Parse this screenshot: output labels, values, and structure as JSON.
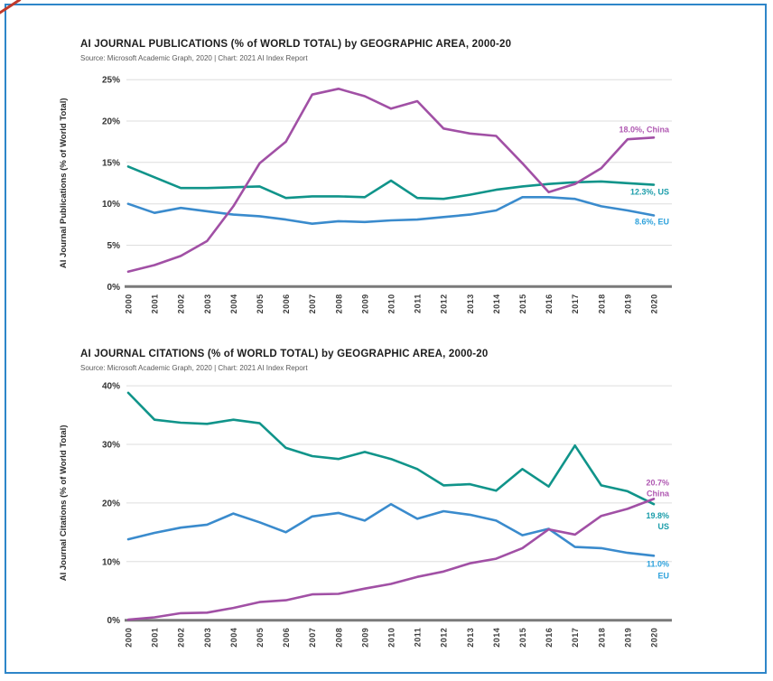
{
  "page": {
    "frame_color": "#2e86c9",
    "corner_mark_color": "#c0392b",
    "background": "#ffffff"
  },
  "chart_data": [
    {
      "type": "line",
      "title": "AI JOURNAL PUBLICATIONS (% of WORLD TOTAL) by GEOGRAPHIC AREA, 2000-20",
      "source": "Source: Microsoft Academic Graph, 2020 | Chart: 2021 AI Index Report",
      "ylabel": "AI Journal Publications (% of World Total)",
      "ylim": [
        0,
        25
      ],
      "ytick_labels": [
        "0%",
        "5%",
        "10%",
        "15%",
        "20%",
        "25%"
      ],
      "grid": true,
      "legend_position": "end-of-line labels (right)",
      "x": [
        2000,
        2001,
        2002,
        2003,
        2004,
        2005,
        2006,
        2007,
        2008,
        2009,
        2010,
        2011,
        2012,
        2013,
        2014,
        2015,
        2016,
        2017,
        2018,
        2019,
        2020
      ],
      "series": [
        {
          "name": "US",
          "color": "#10948a",
          "label_color": "#1b9daa",
          "end_label_lines": [
            "12.3%, US"
          ],
          "values": [
            14.5,
            13.2,
            11.9,
            11.9,
            12.0,
            12.1,
            10.7,
            10.9,
            10.9,
            10.8,
            12.8,
            10.7,
            10.6,
            11.1,
            11.7,
            12.1,
            12.4,
            12.6,
            12.7,
            12.5,
            12.3
          ]
        },
        {
          "name": "EU",
          "color": "#3a8bcd",
          "label_color": "#2ea2dc",
          "end_label_lines": [
            "8.6%, EU"
          ],
          "values": [
            10.0,
            8.9,
            9.5,
            9.1,
            8.7,
            8.5,
            8.1,
            7.6,
            7.9,
            7.8,
            8.0,
            8.1,
            8.4,
            8.7,
            9.2,
            10.8,
            10.8,
            10.6,
            9.7,
            9.2,
            8.6
          ]
        },
        {
          "name": "China",
          "color": "#a150a5",
          "label_color": "#b059b2",
          "end_label_lines": [
            "18.0%, China"
          ],
          "values": [
            1.8,
            2.6,
            3.7,
            5.5,
            9.7,
            14.9,
            17.5,
            23.2,
            23.9,
            23.0,
            21.5,
            22.4,
            19.1,
            18.5,
            18.2,
            14.9,
            11.4,
            12.4,
            14.3,
            17.8,
            18.0
          ]
        }
      ]
    },
    {
      "type": "line",
      "title": "AI JOURNAL CITATIONS (% of WORLD TOTAL) by GEOGRAPHIC AREA, 2000-20",
      "source": "Source: Microsoft Academic Graph, 2020 | Chart: 2021 AI Index Report",
      "ylabel": "AI Journal Citations (% of World Total)",
      "ylim": [
        0,
        40
      ],
      "ytick_labels": [
        "0%",
        "10%",
        "20%",
        "30%",
        "40%"
      ],
      "grid": true,
      "legend_position": "end-of-line labels (right)",
      "x": [
        2000,
        2001,
        2002,
        2003,
        2004,
        2005,
        2006,
        2007,
        2008,
        2009,
        2010,
        2011,
        2012,
        2013,
        2014,
        2015,
        2016,
        2017,
        2018,
        2019,
        2020
      ],
      "series": [
        {
          "name": "US",
          "color": "#10948a",
          "label_color": "#1b9daa",
          "end_label_lines": [
            "19.8%",
            "US"
          ],
          "values": [
            38.8,
            34.2,
            33.7,
            33.5,
            34.2,
            33.6,
            29.4,
            28.0,
            27.5,
            28.7,
            27.5,
            25.8,
            23.0,
            23.2,
            22.1,
            25.8,
            22.8,
            29.8,
            23.0,
            22.0,
            19.8
          ]
        },
        {
          "name": "EU",
          "color": "#3a8bcd",
          "label_color": "#2ea2dc",
          "end_label_lines": [
            "11.0%",
            "EU"
          ],
          "values": [
            13.8,
            14.9,
            15.8,
            16.3,
            18.2,
            16.7,
            15.0,
            17.7,
            18.3,
            17.0,
            19.8,
            17.3,
            18.6,
            18.0,
            17.0,
            14.5,
            15.6,
            12.5,
            12.3,
            11.5,
            11.0
          ]
        },
        {
          "name": "China",
          "color": "#a150a5",
          "label_color": "#b059b2",
          "end_label_lines": [
            "20.7%",
            "China"
          ],
          "values": [
            0.1,
            0.5,
            1.2,
            1.3,
            2.1,
            3.1,
            3.4,
            4.4,
            4.5,
            5.4,
            6.2,
            7.4,
            8.3,
            9.7,
            10.5,
            12.3,
            15.5,
            14.6,
            17.8,
            19.0,
            20.7
          ]
        }
      ]
    }
  ]
}
